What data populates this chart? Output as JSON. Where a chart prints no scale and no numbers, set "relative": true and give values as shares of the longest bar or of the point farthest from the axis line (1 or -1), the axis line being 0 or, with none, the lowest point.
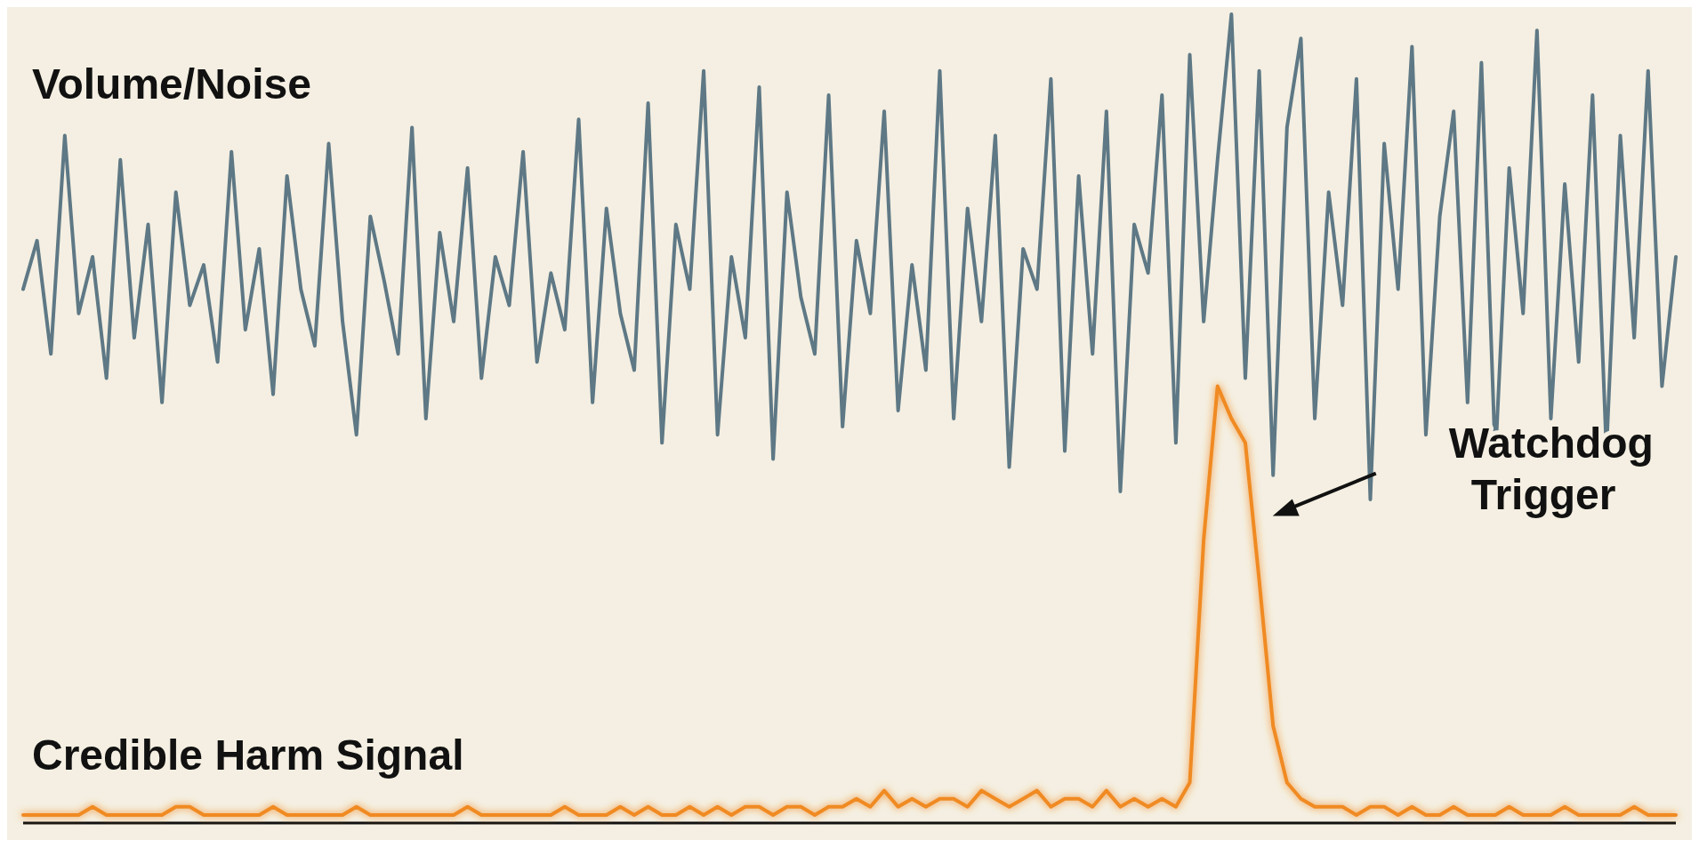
{
  "chart_data": {
    "type": "line",
    "relative": true,
    "categories": [
      null,
      null,
      null,
      null,
      null,
      null,
      null,
      null,
      null,
      null,
      null,
      null,
      null,
      null,
      null,
      null,
      null,
      null,
      null,
      null,
      null,
      null,
      null,
      null,
      null,
      null,
      null,
      null,
      null,
      null,
      null,
      null,
      null,
      null,
      null,
      null,
      null,
      null,
      null,
      null,
      null,
      null,
      null,
      null,
      null,
      null,
      null,
      null,
      null,
      null,
      null,
      null,
      null,
      null,
      null,
      null,
      null,
      null,
      null,
      null,
      null,
      null,
      null,
      null,
      null,
      null,
      null,
      null,
      null,
      null,
      null,
      null,
      null,
      null,
      null,
      null,
      null,
      null,
      null,
      null,
      null,
      null,
      null,
      null,
      null,
      null,
      null,
      null,
      null,
      null,
      null,
      null,
      null,
      null,
      null,
      null,
      null,
      null,
      null,
      null,
      null,
      null,
      null,
      null,
      null,
      null,
      null,
      null,
      null,
      null,
      null,
      null,
      null,
      null,
      null,
      null,
      null,
      null,
      null,
      null
    ],
    "series": [
      {
        "name": "Volume/Noise",
        "color": "#5e7885",
        "values": [
          0.66,
          0.72,
          0.58,
          0.85,
          0.63,
          0.7,
          0.55,
          0.82,
          0.6,
          0.74,
          0.52,
          0.78,
          0.64,
          0.69,
          0.57,
          0.83,
          0.61,
          0.71,
          0.53,
          0.8,
          0.66,
          0.59,
          0.84,
          0.62,
          0.48,
          0.75,
          0.67,
          0.58,
          0.86,
          0.5,
          0.73,
          0.62,
          0.81,
          0.55,
          0.7,
          0.64,
          0.83,
          0.57,
          0.68,
          0.61,
          0.87,
          0.52,
          0.76,
          0.63,
          0.56,
          0.89,
          0.47,
          0.74,
          0.66,
          0.93,
          0.48,
          0.7,
          0.6,
          0.91,
          0.45,
          0.78,
          0.65,
          0.58,
          0.9,
          0.49,
          0.72,
          0.63,
          0.88,
          0.51,
          0.69,
          0.56,
          0.93,
          0.5,
          0.76,
          0.62,
          0.85,
          0.44,
          0.71,
          0.66,
          0.92,
          0.46,
          0.8,
          0.58,
          0.88,
          0.41,
          0.74,
          0.68,
          0.9,
          0.47,
          0.95,
          0.62,
          0.82,
          1.0,
          0.55,
          0.93,
          0.43,
          0.86,
          0.97,
          0.5,
          0.78,
          0.64,
          0.92,
          0.4,
          0.84,
          0.66,
          0.96,
          0.48,
          0.75,
          0.88,
          0.52,
          0.94,
          0.45,
          0.81,
          0.63,
          0.98,
          0.5,
          0.79,
          0.57,
          0.9,
          0.46,
          0.85,
          0.6,
          0.93,
          0.54,
          0.7
        ]
      },
      {
        "name": "Credible Harm Signal",
        "color": "#f08a24",
        "values": [
          0.01,
          0.01,
          0.01,
          0.01,
          0.01,
          0.02,
          0.01,
          0.01,
          0.01,
          0.01,
          0.01,
          0.02,
          0.02,
          0.01,
          0.01,
          0.01,
          0.01,
          0.01,
          0.02,
          0.01,
          0.01,
          0.01,
          0.01,
          0.01,
          0.02,
          0.01,
          0.01,
          0.01,
          0.01,
          0.01,
          0.01,
          0.01,
          0.02,
          0.01,
          0.01,
          0.01,
          0.01,
          0.01,
          0.01,
          0.02,
          0.01,
          0.01,
          0.01,
          0.02,
          0.01,
          0.02,
          0.01,
          0.01,
          0.02,
          0.01,
          0.02,
          0.01,
          0.02,
          0.02,
          0.01,
          0.02,
          0.02,
          0.01,
          0.02,
          0.02,
          0.03,
          0.02,
          0.04,
          0.02,
          0.03,
          0.02,
          0.03,
          0.03,
          0.02,
          0.04,
          0.03,
          0.02,
          0.03,
          0.04,
          0.02,
          0.03,
          0.03,
          0.02,
          0.04,
          0.02,
          0.03,
          0.02,
          0.03,
          0.02,
          0.05,
          0.35,
          0.54,
          0.5,
          0.47,
          0.3,
          0.12,
          0.05,
          0.03,
          0.02,
          0.02,
          0.02,
          0.01,
          0.02,
          0.02,
          0.01,
          0.02,
          0.01,
          0.01,
          0.02,
          0.01,
          0.01,
          0.01,
          0.02,
          0.01,
          0.01,
          0.01,
          0.02,
          0.01,
          0.01,
          0.01,
          0.01,
          0.02,
          0.01,
          0.01,
          0.01
        ]
      }
    ],
    "annotations": [
      "Watchdog Trigger"
    ]
  }
}
